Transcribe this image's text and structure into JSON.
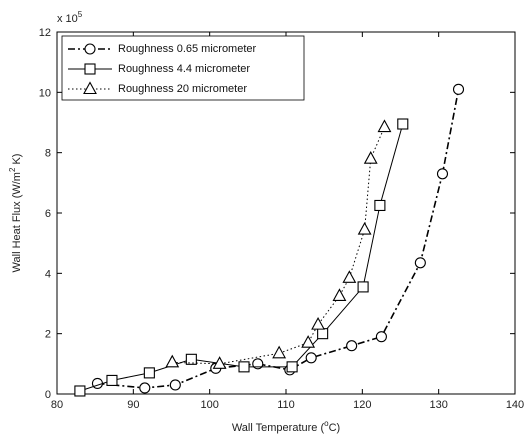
{
  "chart_data": {
    "type": "line",
    "title": "",
    "xlabel": "Wall Temperature (°C)",
    "xlabel_parts": {
      "pre": "Wall Temperature (",
      "sup": "o",
      "post": "C)"
    },
    "ylabel": "Wall Heat Flux (W/m² K)",
    "ylabel_parts": {
      "pre": "Wall Heat Flux (W/m",
      "sup": "2",
      "post": " K)"
    },
    "y_multiplier": "x 10",
    "y_multiplier_exp": "5",
    "xlim": [
      80,
      140
    ],
    "ylim": [
      0,
      12
    ],
    "xticks": [
      "80",
      "90",
      "100",
      "110",
      "120",
      "130",
      "140"
    ],
    "yticks": [
      "0",
      "2",
      "4",
      "6",
      "8",
      "10",
      "12"
    ],
    "grid": false,
    "legend_position": "top-left",
    "series": [
      {
        "name": "Roughness 0.65 micrometer",
        "marker": "circle",
        "dash": "dashdot",
        "line_width": 1.6,
        "x": [
          85.3,
          91.5,
          95.5,
          100.8,
          106.3,
          110.5,
          113.3,
          118.6,
          122.5,
          127.6,
          130.5,
          132.6
        ],
        "y": [
          0.35,
          0.2,
          0.3,
          0.85,
          1.0,
          0.8,
          1.2,
          1.6,
          1.9,
          4.35,
          7.3,
          10.1
        ]
      },
      {
        "name": "Roughness 4.4 micrometer",
        "marker": "square",
        "dash": "solid",
        "line_width": 1.0,
        "x": [
          83.0,
          87.2,
          92.1,
          97.6,
          104.5,
          110.8,
          114.8,
          120.1,
          122.3,
          125.3
        ],
        "y": [
          0.1,
          0.45,
          0.7,
          1.15,
          0.9,
          0.9,
          2.0,
          3.55,
          6.25,
          8.95
        ]
      },
      {
        "name": "Roughness 20 micrometer",
        "marker": "triangle",
        "dash": "dotted",
        "line_width": 1.0,
        "x": [
          95.1,
          101.3,
          109.1,
          112.9,
          114.2,
          117.0,
          118.3,
          120.3,
          121.1,
          122.9
        ],
        "y": [
          1.05,
          1.0,
          1.35,
          1.7,
          2.3,
          3.25,
          3.85,
          5.45,
          7.8,
          8.85
        ]
      }
    ]
  }
}
